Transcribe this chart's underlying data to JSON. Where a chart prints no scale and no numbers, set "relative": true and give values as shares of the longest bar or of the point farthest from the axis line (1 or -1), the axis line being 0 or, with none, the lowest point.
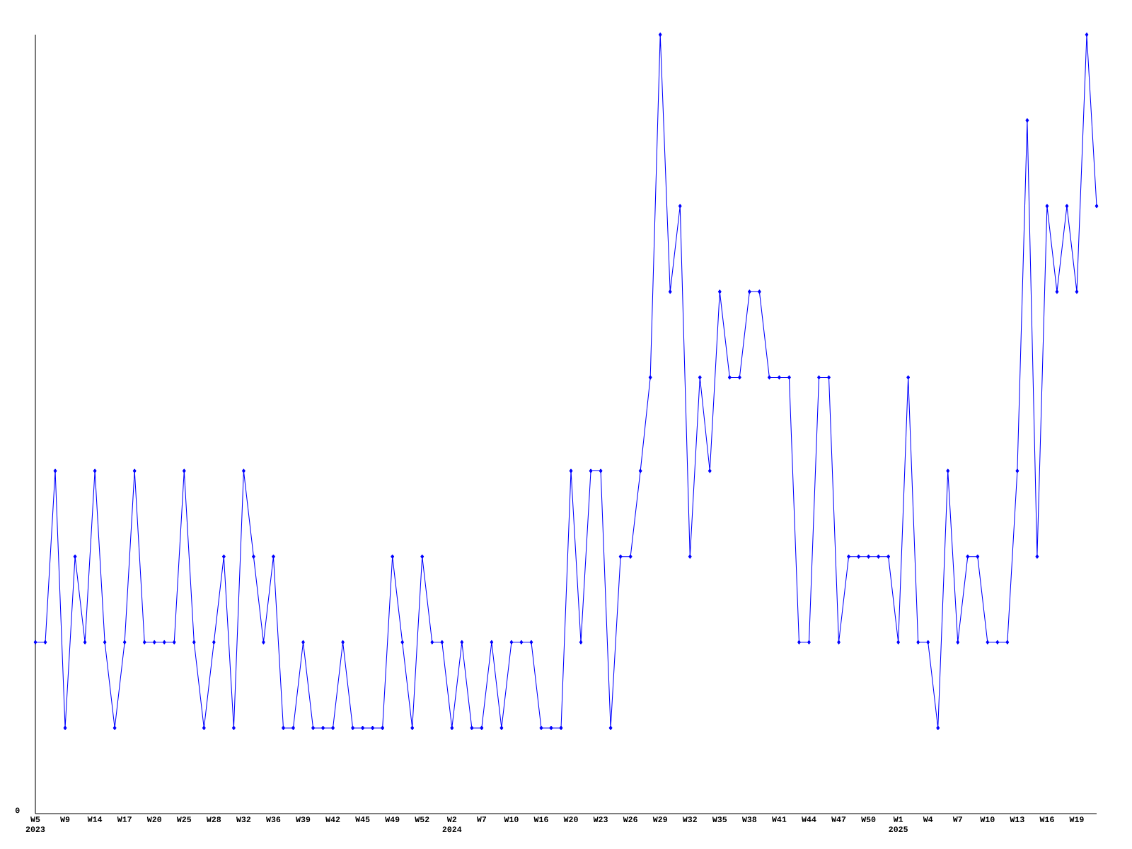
{
  "chart_data": {
    "type": "line",
    "relative": true,
    "marker": "diamond",
    "line_style": "solid",
    "categories": [
      "W5 2023",
      null,
      null,
      "W9",
      null,
      null,
      "W14",
      null,
      null,
      "W17",
      null,
      null,
      "W20",
      null,
      null,
      "W25",
      null,
      null,
      "W28",
      null,
      null,
      "W32",
      null,
      null,
      "W36",
      null,
      null,
      "W39",
      null,
      null,
      "W42",
      null,
      null,
      "W45",
      null,
      null,
      "W49",
      null,
      null,
      "W52",
      null,
      null,
      "W2 2024",
      null,
      null,
      "W7",
      null,
      null,
      "W10",
      null,
      null,
      "W16",
      null,
      null,
      "W20",
      null,
      null,
      "W23",
      null,
      null,
      "W26",
      null,
      null,
      "W29",
      null,
      null,
      "W32",
      null,
      null,
      "W35",
      null,
      null,
      "W38",
      null,
      null,
      "W41",
      null,
      null,
      "W44",
      null,
      null,
      "W47",
      null,
      null,
      "W50",
      null,
      null,
      "W1 2025",
      null,
      null,
      "W4",
      null,
      null,
      "W7",
      null,
      null,
      "W10",
      null,
      null,
      "W13",
      null,
      null,
      "W16",
      null,
      null,
      "W19",
      null,
      null
    ],
    "series": [
      {
        "color": "#0000ff",
        "values": [
          0.22,
          0.22,
          0.44,
          0.11,
          0.33,
          0.22,
          0.44,
          0.22,
          0.11,
          0.22,
          0.44,
          0.22,
          0.22,
          0.22,
          0.22,
          0.44,
          0.22,
          0.11,
          0.22,
          0.33,
          0.11,
          0.44,
          0.33,
          0.22,
          0.33,
          0.11,
          0.11,
          0.22,
          0.11,
          0.11,
          0.11,
          0.22,
          0.11,
          0.11,
          0.11,
          0.11,
          0.33,
          0.22,
          0.11,
          0.33,
          0.22,
          0.22,
          0.11,
          0.22,
          0.11,
          0.11,
          0.22,
          0.11,
          0.22,
          0.22,
          0.22,
          0.11,
          0.11,
          0.11,
          0.44,
          0.22,
          0.44,
          0.44,
          0.11,
          0.33,
          0.33,
          0.44,
          0.56,
          1,
          0.67,
          0.78,
          0.33,
          0.56,
          0.44,
          0.67,
          0.56,
          0.56,
          0.67,
          0.67,
          0.56,
          0.56,
          0.56,
          0.22,
          0.22,
          0.56,
          0.56,
          0.22,
          0.33,
          0.33,
          0.33,
          0.33,
          0.33,
          0.22,
          0.56,
          0.22,
          0.22,
          0.11,
          0.44,
          0.22,
          0.33,
          0.33,
          0.22,
          0.22,
          0.22,
          0.44,
          0.89,
          0.33,
          0.78,
          0.67,
          0.78,
          0.67,
          1,
          0.78
        ]
      }
    ],
    "annotations": [
      "0"
    ]
  }
}
